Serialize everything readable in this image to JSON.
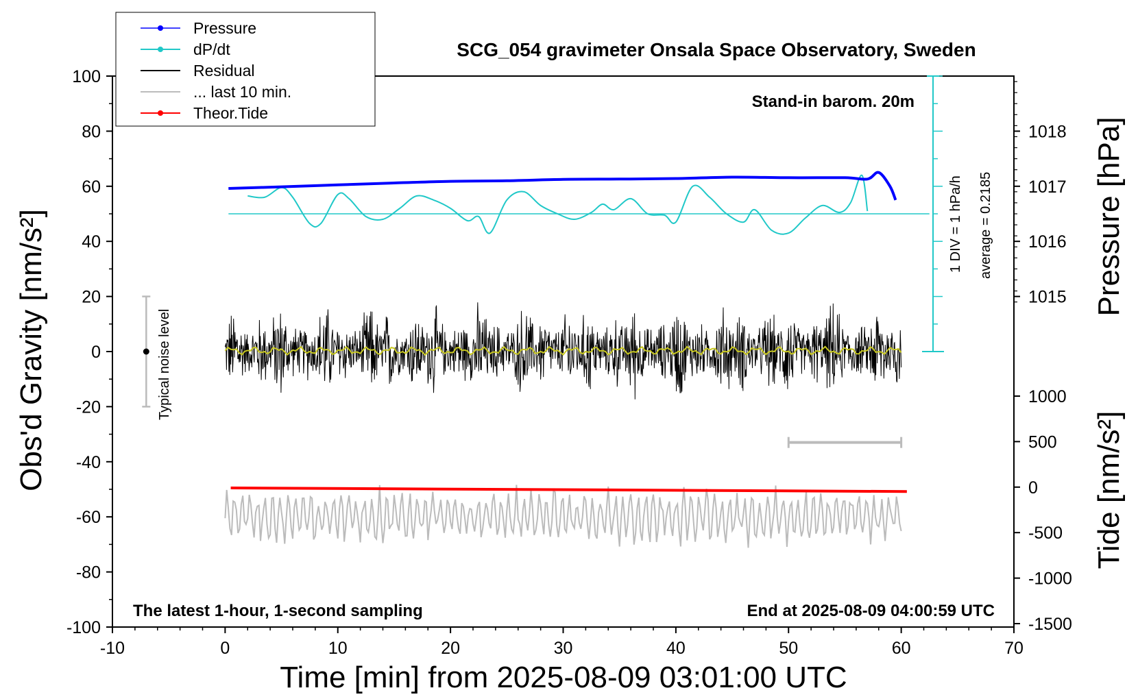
{
  "chart_data": {
    "type": "line",
    "title": "SCG_054 gravimeter Onsala Space Observatory, Sweden",
    "xlabel": "Time [min] from 2025-08-09 03:01:00 UTC",
    "ylabel_left": "Obs'd Gravity [nm/s²]",
    "ylabel_right_top": "Pressure [hPa]",
    "ylabel_right_bottom": "Tide [nm/s²]",
    "xlim": [
      -10,
      70
    ],
    "ylim_left": [
      -100,
      100
    ],
    "x_ticks": [
      "-10",
      "0",
      "10",
      "20",
      "30",
      "40",
      "50",
      "60",
      "70"
    ],
    "y_ticks_left": [
      "100",
      "80",
      "60",
      "40",
      "20",
      "0",
      "-20",
      "-40",
      "-60",
      "-80",
      "-100"
    ],
    "pressure_ticks": [
      "1018",
      "1017",
      "1016",
      "1015"
    ],
    "tide_ticks": [
      "1000",
      "500",
      "0",
      "-500",
      "-1000",
      "-1500"
    ],
    "annotations": {
      "barometer": "Stand-in barom. 20m",
      "scale_div": "1 DIV = 1 hPa/h",
      "average": "average = 0.2185",
      "noise": "Typical noise level",
      "latest": "The latest 1-hour, 1-second sampling",
      "end_time": "End at 2025-08-09 04:00:59 UTC"
    },
    "legend": [
      {
        "name": "Pressure",
        "color": "#0000ff"
      },
      {
        "name": "dP/dt",
        "color": "#20c8c8"
      },
      {
        "name": "Residual",
        "color": "#000000"
      },
      {
        "name": "... last 10 min.",
        "color": "#bbbbbb"
      },
      {
        "name": "Theor.Tide",
        "color": "#ff0000"
      }
    ],
    "series": [
      {
        "name": "Pressure",
        "color": "#0000ff",
        "x": [
          0.3,
          5,
          10,
          15,
          20,
          25,
          30,
          35,
          40,
          45,
          50,
          55,
          57,
          58,
          59,
          59.5
        ],
        "y": [
          59.2,
          59.8,
          60.5,
          61.2,
          61.8,
          62.0,
          62.5,
          62.6,
          62.8,
          63.3,
          63.1,
          63.1,
          62.6,
          65.0,
          60.0,
          55.0
        ]
      },
      {
        "name": "dP/dt",
        "color": "#20c8c8",
        "x": [
          2,
          3.5,
          5,
          6,
          7.5,
          8.5,
          10,
          11,
          12.5,
          14,
          15.5,
          17,
          18.5,
          20,
          21.5,
          22.5,
          23.5,
          25,
          26.5,
          28,
          29.5,
          31,
          32.5,
          33.5,
          34.5,
          36,
          37.5,
          39,
          40,
          41.5,
          43,
          44.5,
          46,
          47,
          48.5,
          50,
          51.5,
          53,
          54.5,
          55.5,
          56.5,
          57
        ],
        "y": [
          56.5,
          56,
          59.5,
          56,
          46.5,
          46.5,
          57,
          55.5,
          49,
          48,
          52,
          56.5,
          55,
          52,
          47.5,
          49,
          43,
          55,
          58,
          53,
          50,
          48,
          50.5,
          53.5,
          51.5,
          55.5,
          50,
          49.5,
          47,
          60,
          56,
          50,
          47,
          51.5,
          44,
          43,
          48.5,
          53,
          50.5,
          54,
          64,
          51
        ]
      },
      {
        "name": "Residual",
        "color": "#000000",
        "x": [
          0,
          60
        ],
        "y": [
          0,
          0
        ]
      },
      {
        "name": "... last 10 min.",
        "color": "#bbbbbb",
        "x": [
          50,
          60
        ],
        "y": [
          -33,
          -33
        ]
      },
      {
        "name": "Theor.Tide",
        "color": "#ff0000",
        "x": [
          0.5,
          60.5
        ],
        "y": [
          -49.5,
          -50.8
        ]
      }
    ],
    "noise_range": [
      -20,
      20
    ],
    "pressure_reference_line": 50
  }
}
